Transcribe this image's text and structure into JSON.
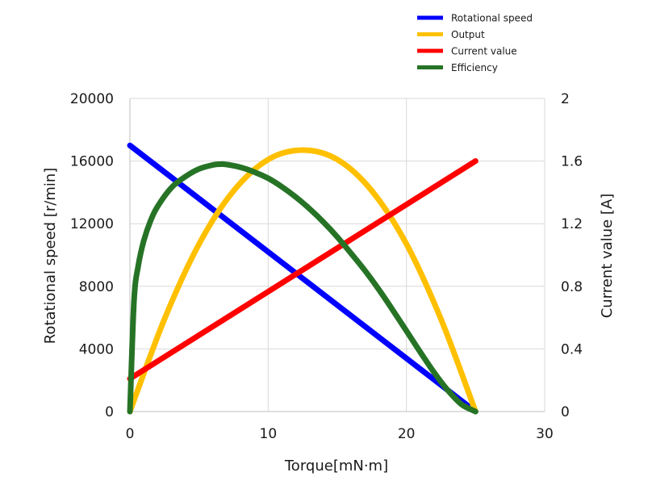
{
  "chart_data": {
    "type": "line",
    "title": "",
    "xlabel": "Torque[mN·m]",
    "ylabel": "Rotational speed [r/min]",
    "y2label": "Current value [A]",
    "xlim": [
      0,
      30
    ],
    "ylim": [
      0,
      20000
    ],
    "y2lim": [
      0,
      2
    ],
    "x_ticks": [
      "0",
      "10",
      "20",
      "30"
    ],
    "y_ticks": [
      "0",
      "4000",
      "8000",
      "12000",
      "16000",
      "20000"
    ],
    "y2_ticks": [
      "0",
      "0.4",
      "0.8",
      "1.2",
      "1.6",
      "2"
    ],
    "grid": true,
    "legend_position": "top-right",
    "series": [
      {
        "name": "Rotational speed",
        "color": "#0000ff",
        "axis": "left",
        "x": [
          0,
          25
        ],
        "values": [
          17000,
          0
        ]
      },
      {
        "name": "Output",
        "color": "#ffc000",
        "axis": "left",
        "x": [
          0,
          2.5,
          5,
          7.5,
          10,
          12.5,
          15,
          17.5,
          20,
          22.5,
          25
        ],
        "values": [
          0,
          5900,
          10700,
          14100,
          16100,
          16700,
          16100,
          14100,
          10700,
          5900,
          0
        ]
      },
      {
        "name": "Current value",
        "color": "#ff0000",
        "axis": "right",
        "x": [
          0,
          25
        ],
        "values": [
          0.21,
          1.6
        ]
      },
      {
        "name": "Efficiency",
        "color": "#267326",
        "axis": "left",
        "x": [
          0,
          0.3,
          0.6,
          1,
          1.5,
          2,
          3,
          4,
          5,
          6,
          6.5,
          7,
          8,
          9,
          10,
          11,
          12,
          13,
          14,
          15,
          16,
          17,
          18,
          19,
          20,
          21,
          22,
          23,
          24,
          25
        ],
        "values": [
          0,
          7100,
          9300,
          10900,
          12200,
          13100,
          14300,
          15000,
          15500,
          15750,
          15800,
          15780,
          15600,
          15300,
          14900,
          14350,
          13700,
          12950,
          12100,
          11150,
          10100,
          9000,
          7800,
          6500,
          5150,
          3800,
          2500,
          1350,
          450,
          0
        ]
      }
    ]
  }
}
